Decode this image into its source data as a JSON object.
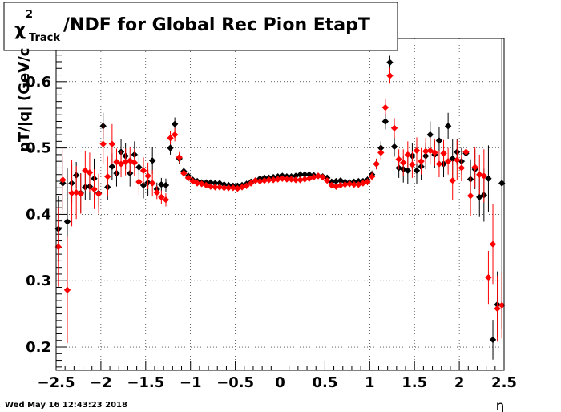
{
  "chart_data": {
    "type": "scatter",
    "title": {
      "chi": "χ",
      "sup": "2",
      "sub": "Track",
      "rest": "/NDF for Global Rec Pion EtapT"
    },
    "xlabel": "η",
    "ylabel": "pT/|q| (GeV/c",
    "xlim": [
      -2.5,
      2.5
    ],
    "ylim": [
      0.165,
      0.665
    ],
    "x_ticks": [
      -2.5,
      -2,
      -1.5,
      -1,
      -0.5,
      0,
      0.5,
      1,
      1.5,
      2,
      2.5
    ],
    "x_tick_labels": [
      "−2.5",
      "−2",
      "−1.5",
      "−1",
      "−0.5",
      "0",
      "0.5",
      "1",
      "1.5",
      "2",
      "2.5"
    ],
    "y_ticks": [
      0.2,
      0.3,
      0.4,
      0.5,
      0.6
    ],
    "y_tick_labels": [
      "0.2",
      "0.3",
      "0.4",
      "0.5",
      "0.6"
    ],
    "grid": true,
    "marker_shape": "diamond",
    "timestamp": "Wed May 16 12:43:23 2018",
    "series": [
      {
        "color": "#000000",
        "points": [
          [
            -2.475,
            0.378,
            0.05
          ],
          [
            -2.425,
            0.447,
            0.04
          ],
          [
            -2.375,
            0.389,
            0.08
          ],
          [
            -2.325,
            0.447,
            0.03
          ],
          [
            -2.275,
            0.459,
            0.02
          ],
          [
            -2.225,
            0.432,
            0.03
          ],
          [
            -2.175,
            0.441,
            0.02
          ],
          [
            -2.125,
            0.442,
            0.02
          ],
          [
            -2.075,
            0.454,
            0.03
          ],
          [
            -2.025,
            0.432,
            0.02
          ],
          [
            -1.975,
            0.533,
            0.02
          ],
          [
            -1.925,
            0.441,
            0.02
          ],
          [
            -1.875,
            0.472,
            0.02
          ],
          [
            -1.825,
            0.462,
            0.02
          ],
          [
            -1.775,
            0.494,
            0.02
          ],
          [
            -1.725,
            0.488,
            0.02
          ],
          [
            -1.675,
            0.462,
            0.02
          ],
          [
            -1.625,
            0.49,
            0.02
          ],
          [
            -1.575,
            0.471,
            0.02
          ],
          [
            -1.525,
            0.444,
            0.02
          ],
          [
            -1.475,
            0.448,
            0.02
          ],
          [
            -1.425,
            0.481,
            0.02
          ],
          [
            -1.375,
            0.438,
            0.01
          ],
          [
            -1.325,
            0.445,
            0.01
          ],
          [
            -1.275,
            0.444,
            0.01
          ],
          [
            -1.225,
            0.5,
            0.01
          ],
          [
            -1.175,
            0.536,
            0.01
          ],
          [
            -1.125,
            0.484,
            0.008
          ],
          [
            -1.075,
            0.465,
            0.006
          ],
          [
            -1.025,
            0.458,
            0.005
          ],
          [
            -0.975,
            0.452,
            0.004
          ],
          [
            -0.925,
            0.45,
            0.004
          ],
          [
            -0.875,
            0.448,
            0.004
          ],
          [
            -0.825,
            0.448,
            0.004
          ],
          [
            -0.775,
            0.448,
            0.004
          ],
          [
            -0.725,
            0.447,
            0.004
          ],
          [
            -0.675,
            0.447,
            0.004
          ],
          [
            -0.625,
            0.445,
            0.004
          ],
          [
            -0.575,
            0.444,
            0.004
          ],
          [
            -0.525,
            0.443,
            0.004
          ],
          [
            -0.475,
            0.443,
            0.004
          ],
          [
            -0.425,
            0.444,
            0.004
          ],
          [
            -0.375,
            0.446,
            0.004
          ],
          [
            -0.325,
            0.449,
            0.004
          ],
          [
            -0.275,
            0.451,
            0.004
          ],
          [
            -0.225,
            0.454,
            0.004
          ],
          [
            -0.175,
            0.455,
            0.004
          ],
          [
            -0.125,
            0.455,
            0.004
          ],
          [
            -0.075,
            0.456,
            0.004
          ],
          [
            -0.025,
            0.457,
            0.004
          ],
          [
            0.025,
            0.458,
            0.004
          ],
          [
            0.075,
            0.457,
            0.004
          ],
          [
            0.125,
            0.457,
            0.004
          ],
          [
            0.175,
            0.458,
            0.004
          ],
          [
            0.225,
            0.46,
            0.004
          ],
          [
            0.275,
            0.46,
            0.004
          ],
          [
            0.325,
            0.46,
            0.004
          ],
          [
            0.375,
            0.459,
            0.004
          ],
          [
            0.425,
            0.458,
            0.004
          ],
          [
            0.475,
            0.457,
            0.004
          ],
          [
            0.525,
            0.455,
            0.004
          ],
          [
            0.575,
            0.449,
            0.004
          ],
          [
            0.625,
            0.45,
            0.004
          ],
          [
            0.675,
            0.451,
            0.004
          ],
          [
            0.725,
            0.449,
            0.004
          ],
          [
            0.775,
            0.448,
            0.004
          ],
          [
            0.825,
            0.449,
            0.004
          ],
          [
            0.875,
            0.45,
            0.004
          ],
          [
            0.925,
            0.45,
            0.004
          ],
          [
            0.975,
            0.452,
            0.005
          ],
          [
            1.025,
            0.46,
            0.006
          ],
          [
            1.075,
            0.476,
            0.008
          ],
          [
            1.125,
            0.5,
            0.01
          ],
          [
            1.175,
            0.54,
            0.012
          ],
          [
            1.225,
            0.629,
            0.01
          ],
          [
            1.275,
            0.502,
            0.015
          ],
          [
            1.325,
            0.47,
            0.015
          ],
          [
            1.375,
            0.468,
            0.02
          ],
          [
            1.425,
            0.466,
            0.02
          ],
          [
            1.475,
            0.488,
            0.02
          ],
          [
            1.525,
            0.466,
            0.02
          ],
          [
            1.575,
            0.472,
            0.02
          ],
          [
            1.625,
            0.488,
            0.02
          ],
          [
            1.675,
            0.52,
            0.02
          ],
          [
            1.725,
            0.49,
            0.02
          ],
          [
            1.775,
            0.511,
            0.02
          ],
          [
            1.825,
            0.476,
            0.02
          ],
          [
            1.875,
            0.533,
            0.02
          ],
          [
            1.925,
            0.484,
            0.03
          ],
          [
            1.975,
            0.494,
            0.02
          ],
          [
            2.025,
            0.48,
            0.02
          ],
          [
            2.075,
            0.492,
            0.03
          ],
          [
            2.125,
            0.453,
            0.03
          ],
          [
            2.175,
            0.468,
            0.03
          ],
          [
            2.225,
            0.426,
            0.03
          ],
          [
            2.275,
            0.429,
            0.04
          ],
          [
            2.325,
            0.454,
            0.05
          ],
          [
            2.375,
            0.211,
            0.03
          ],
          [
            2.425,
            0.264,
            0.05
          ],
          [
            2.475,
            0.447,
            0.22
          ]
        ]
      },
      {
        "color": "#ff0000",
        "points": [
          [
            -2.475,
            0.351,
            0.06
          ],
          [
            -2.425,
            0.452,
            0.05
          ],
          [
            -2.375,
            0.286,
            0.08
          ],
          [
            -2.325,
            0.432,
            0.05
          ],
          [
            -2.275,
            0.433,
            0.04
          ],
          [
            -2.225,
            0.431,
            0.03
          ],
          [
            -2.175,
            0.466,
            0.03
          ],
          [
            -2.125,
            0.463,
            0.03
          ],
          [
            -2.075,
            0.438,
            0.03
          ],
          [
            -2.025,
            0.431,
            0.03
          ],
          [
            -1.975,
            0.506,
            0.03
          ],
          [
            -1.925,
            0.457,
            0.03
          ],
          [
            -1.875,
            0.506,
            0.03
          ],
          [
            -1.825,
            0.479,
            0.02
          ],
          [
            -1.775,
            0.476,
            0.02
          ],
          [
            -1.725,
            0.479,
            0.02
          ],
          [
            -1.675,
            0.481,
            0.02
          ],
          [
            -1.625,
            0.478,
            0.02
          ],
          [
            -1.575,
            0.449,
            0.02
          ],
          [
            -1.525,
            0.466,
            0.02
          ],
          [
            -1.475,
            0.458,
            0.02
          ],
          [
            -1.425,
            0.447,
            0.02
          ],
          [
            -1.375,
            0.433,
            0.01
          ],
          [
            -1.325,
            0.426,
            0.01
          ],
          [
            -1.275,
            0.422,
            0.01
          ],
          [
            -1.225,
            0.515,
            0.01
          ],
          [
            -1.175,
            0.52,
            0.01
          ],
          [
            -1.125,
            0.486,
            0.008
          ],
          [
            -1.075,
            0.462,
            0.006
          ],
          [
            -1.025,
            0.455,
            0.005
          ],
          [
            -0.975,
            0.45,
            0.004
          ],
          [
            -0.925,
            0.447,
            0.004
          ],
          [
            -0.875,
            0.446,
            0.004
          ],
          [
            -0.825,
            0.444,
            0.004
          ],
          [
            -0.775,
            0.442,
            0.004
          ],
          [
            -0.725,
            0.441,
            0.004
          ],
          [
            -0.675,
            0.441,
            0.004
          ],
          [
            -0.625,
            0.44,
            0.004
          ],
          [
            -0.575,
            0.44,
            0.004
          ],
          [
            -0.525,
            0.44,
            0.004
          ],
          [
            -0.475,
            0.439,
            0.004
          ],
          [
            -0.425,
            0.441,
            0.004
          ],
          [
            -0.375,
            0.443,
            0.004
          ],
          [
            -0.325,
            0.447,
            0.004
          ],
          [
            -0.275,
            0.451,
            0.004
          ],
          [
            -0.225,
            0.45,
            0.004
          ],
          [
            -0.175,
            0.451,
            0.004
          ],
          [
            -0.125,
            0.452,
            0.004
          ],
          [
            -0.075,
            0.452,
            0.004
          ],
          [
            -0.025,
            0.453,
            0.004
          ],
          [
            0.025,
            0.454,
            0.004
          ],
          [
            0.075,
            0.453,
            0.004
          ],
          [
            0.125,
            0.453,
            0.004
          ],
          [
            0.175,
            0.452,
            0.004
          ],
          [
            0.225,
            0.452,
            0.004
          ],
          [
            0.275,
            0.453,
            0.004
          ],
          [
            0.325,
            0.454,
            0.004
          ],
          [
            0.375,
            0.456,
            0.004
          ],
          [
            0.425,
            0.458,
            0.004
          ],
          [
            0.475,
            0.456,
            0.004
          ],
          [
            0.525,
            0.451,
            0.004
          ],
          [
            0.575,
            0.444,
            0.004
          ],
          [
            0.625,
            0.442,
            0.004
          ],
          [
            0.675,
            0.444,
            0.004
          ],
          [
            0.725,
            0.445,
            0.004
          ],
          [
            0.775,
            0.446,
            0.004
          ],
          [
            0.825,
            0.445,
            0.004
          ],
          [
            0.875,
            0.445,
            0.004
          ],
          [
            0.925,
            0.447,
            0.004
          ],
          [
            0.975,
            0.449,
            0.005
          ],
          [
            1.025,
            0.457,
            0.006
          ],
          [
            1.075,
            0.476,
            0.008
          ],
          [
            1.125,
            0.493,
            0.01
          ],
          [
            1.175,
            0.561,
            0.012
          ],
          [
            1.225,
            0.609,
            0.012
          ],
          [
            1.275,
            0.53,
            0.015
          ],
          [
            1.325,
            0.483,
            0.015
          ],
          [
            1.375,
            0.478,
            0.02
          ],
          [
            1.425,
            0.49,
            0.02
          ],
          [
            1.475,
            0.475,
            0.02
          ],
          [
            1.525,
            0.496,
            0.02
          ],
          [
            1.575,
            0.48,
            0.02
          ],
          [
            1.625,
            0.495,
            0.02
          ],
          [
            1.675,
            0.496,
            0.02
          ],
          [
            1.725,
            0.493,
            0.02
          ],
          [
            1.775,
            0.476,
            0.02
          ],
          [
            1.825,
            0.492,
            0.02
          ],
          [
            1.875,
            0.48,
            0.02
          ],
          [
            1.925,
            0.451,
            0.03
          ],
          [
            1.975,
            0.482,
            0.03
          ],
          [
            2.025,
            0.47,
            0.02
          ],
          [
            2.075,
            0.494,
            0.03
          ],
          [
            2.125,
            0.428,
            0.03
          ],
          [
            2.175,
            0.471,
            0.03
          ],
          [
            2.225,
            0.46,
            0.03
          ],
          [
            2.275,
            0.458,
            0.04
          ],
          [
            2.325,
            0.305,
            0.04
          ],
          [
            2.375,
            0.355,
            0.06
          ],
          [
            2.425,
            0.258,
            0.05
          ],
          [
            2.475,
            0.263,
            0.05
          ]
        ]
      }
    ]
  }
}
